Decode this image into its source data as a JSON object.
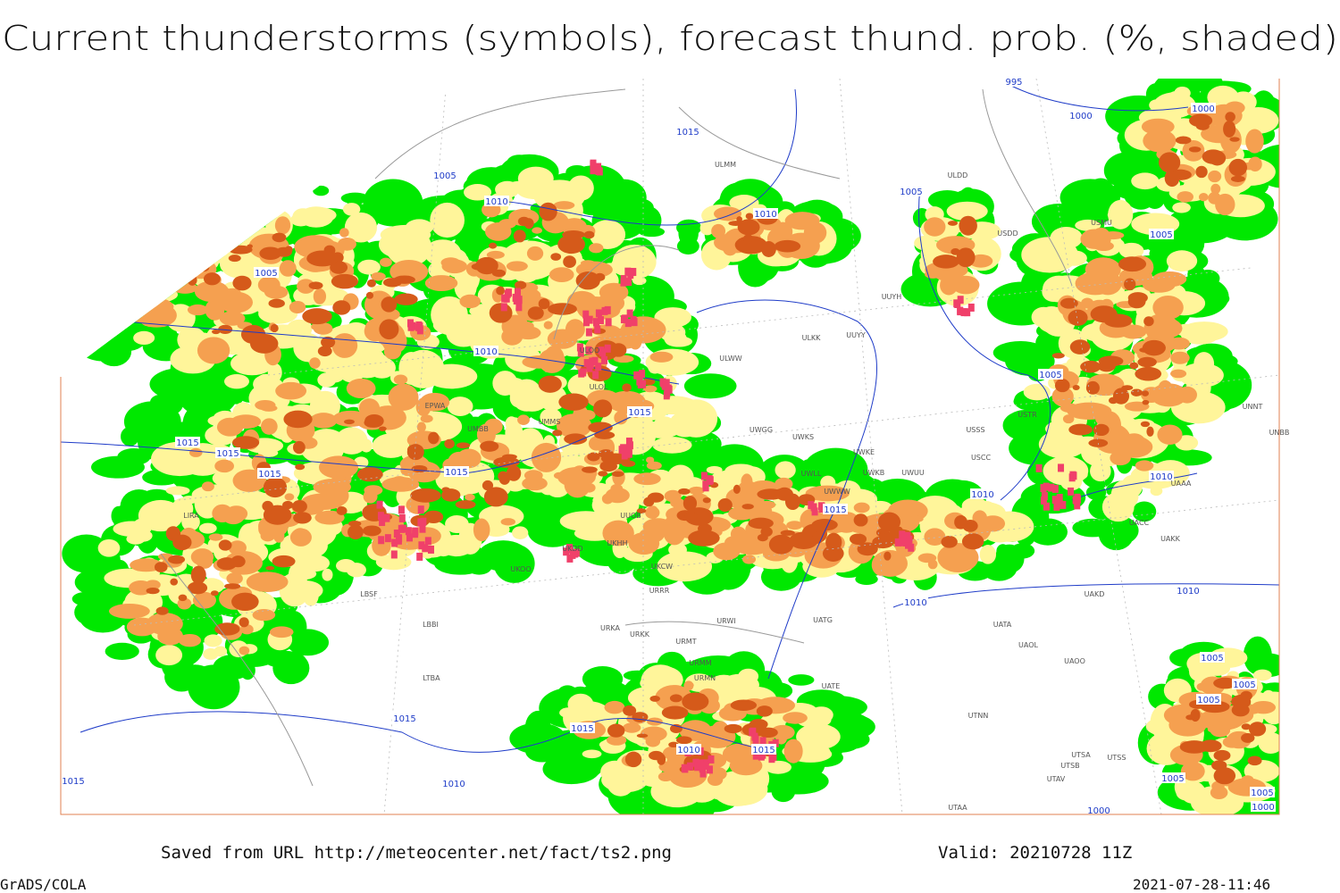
{
  "header": {
    "title": "Current thunderstorms (symbols), forecast thund. prob. (%, shaded)"
  },
  "map": {
    "isobar_labels": [
      995,
      1000,
      1000,
      1005,
      1005,
      1005,
      1005,
      1005,
      1010,
      1010,
      1010,
      1010,
      1010,
      1010,
      1010,
      1015,
      1015,
      1015,
      1015,
      1015,
      1015,
      1015,
      1015,
      1015,
      1015,
      1010,
      1015,
      1010,
      1005,
      1005,
      1005,
      1005,
      1005,
      1000,
      1000
    ],
    "stations": [
      "ULMM",
      "ULDD",
      "USDD",
      "USMU",
      "UUYH",
      "ULKK",
      "UUYY",
      "ULWW",
      "USTR",
      "USSS",
      "USCC",
      "UWGG",
      "UWKS",
      "UWKE",
      "UWKB",
      "UWUU",
      "UWLL",
      "UWWW",
      "EPWA",
      "UMMS",
      "UMBB",
      "ULOO",
      "ULOL",
      "UUOB",
      "UKHH",
      "UKDD",
      "UKOO",
      "UKCW",
      "URRR",
      "URWI",
      "UATG",
      "UATA",
      "UAOL",
      "UAOO",
      "UAKD",
      "UACC",
      "UAKK",
      "UAAA",
      "UNNT",
      "UNBB",
      "URKA",
      "URKK",
      "URMT",
      "URMM",
      "URMN",
      "UATE",
      "UTNN",
      "UTSA",
      "UTSS",
      "UTSB",
      "UTAV",
      "UTAA",
      "LIRA",
      "LBSF",
      "LBBI",
      "LTBA"
    ]
  },
  "footer": {
    "source": "Saved from URL http://meteocenter.net/fact/ts2.png",
    "valid": "Valid: 20210728 11Z",
    "software": "GrADS/COLA",
    "timestamp": "2021-07-28-11:46"
  }
}
